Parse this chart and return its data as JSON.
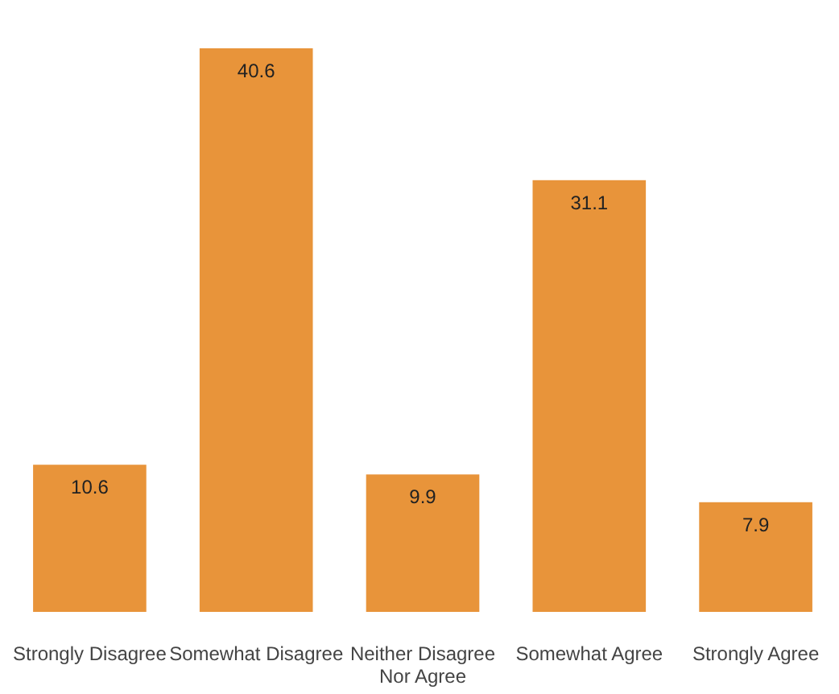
{
  "chart_data": {
    "type": "bar",
    "categories": [
      "Strongly Disagree",
      "Somewhat Disagree",
      "Neither Disagree Nor Agree",
      "Somewhat Agree",
      "Strongly Agree"
    ],
    "values": [
      10.6,
      40.6,
      9.9,
      31.1,
      7.9
    ],
    "color": "#e8943a",
    "data_labels": true
  }
}
